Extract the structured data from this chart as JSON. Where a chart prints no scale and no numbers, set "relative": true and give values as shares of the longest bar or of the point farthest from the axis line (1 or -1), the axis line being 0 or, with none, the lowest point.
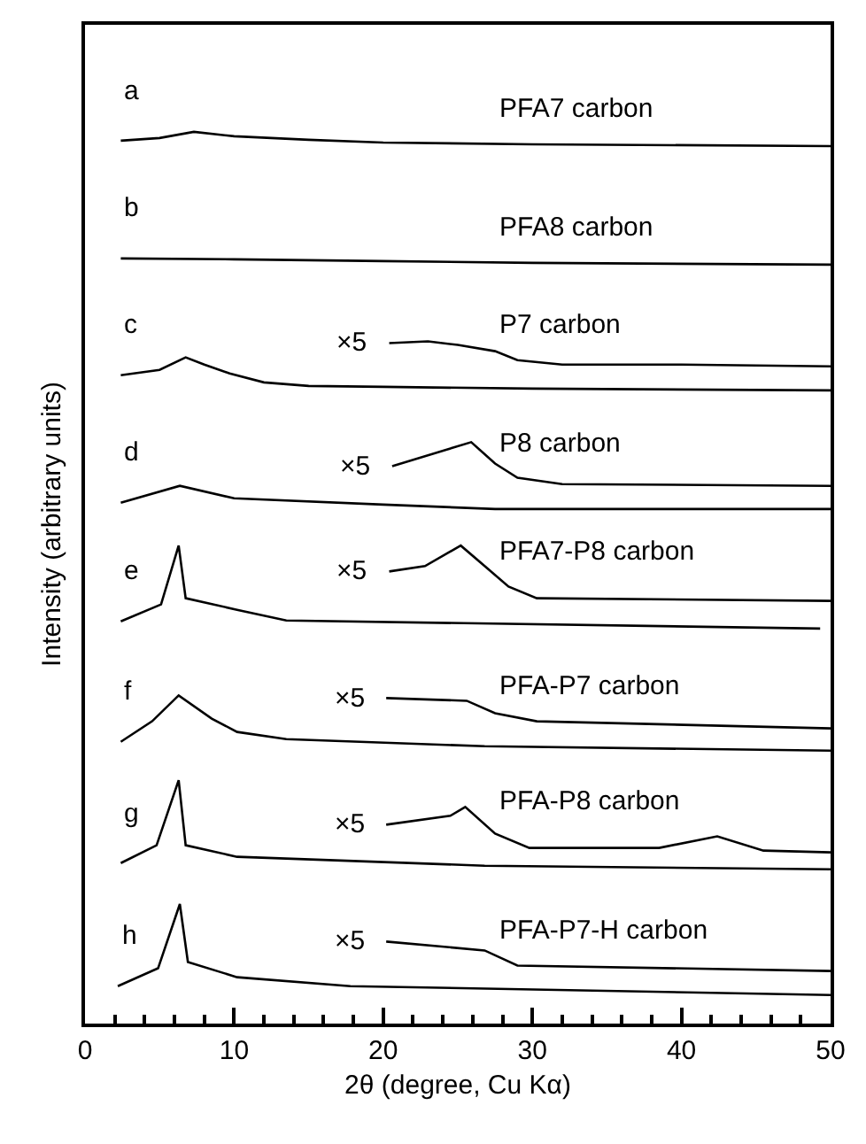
{
  "chart_data": {
    "type": "line",
    "relative": true,
    "xlabel": "2θ (degree, Cu Kα)",
    "ylabel": "Intensity (arbitrary units)",
    "xlim": [
      0,
      50
    ],
    "xticks": [
      0,
      {
        "value": 2,
        "label": null
      },
      {
        "value": 4,
        "label": null
      },
      {
        "value": 6,
        "label": null
      },
      {
        "value": 8,
        "label": null
      },
      10,
      {
        "value": 12,
        "label": null
      },
      {
        "value": 14,
        "label": null
      },
      {
        "value": 16,
        "label": null
      },
      {
        "value": 18,
        "label": null
      },
      20,
      {
        "value": 22,
        "label": null
      },
      {
        "value": 24,
        "label": null
      },
      {
        "value": 26,
        "label": null
      },
      {
        "value": 28,
        "label": null
      },
      30,
      {
        "value": 32,
        "label": null
      },
      {
        "value": 34,
        "label": null
      },
      {
        "value": 36,
        "label": null
      },
      {
        "value": 38,
        "label": null
      },
      40,
      {
        "value": 42,
        "label": null
      },
      {
        "value": 44,
        "label": null
      },
      {
        "value": 46,
        "label": null
      },
      {
        "value": 48,
        "label": null
      },
      50
    ],
    "legend": false,
    "marker": "none",
    "line_style": "solid",
    "series": [
      {
        "name": "PFA7 carbon",
        "color": "#000000",
        "x": [
          2.4,
          5,
          7.3,
          10,
          15,
          20,
          30,
          50
        ],
        "values": [
          0.99,
          0.993,
          1.0,
          0.995,
          0.991,
          0.988,
          0.986,
          0.984
        ]
      },
      {
        "name": "PFA8 carbon",
        "color": "#000000",
        "x": [
          2.4,
          10,
          20,
          30,
          50
        ],
        "values": [
          0.858,
          0.857,
          0.855,
          0.853,
          0.851
        ]
      },
      {
        "color": "#000000",
        "x": [
          2.4,
          5,
          6.75,
          8,
          9.7,
          12,
          15,
          20,
          30,
          50
        ],
        "values": [
          0.727,
          0.733,
          0.747,
          0.739,
          0.729,
          0.719,
          0.715,
          0.714,
          0.712,
          0.71
        ]
      },
      {
        "name": "P7 carbon",
        "color": "#000000",
        "x": [
          20.4,
          23,
          25,
          27.5,
          29,
          32,
          40,
          50
        ],
        "values": [
          0.763,
          0.765,
          0.761,
          0.754,
          0.744,
          0.739,
          0.739,
          0.737
        ]
      },
      {
        "color": "#000000",
        "x": [
          2.4,
          6.36,
          10,
          20,
          27.5,
          50
        ],
        "values": [
          0.584,
          0.603,
          0.589,
          0.582,
          0.577,
          0.577
        ]
      },
      {
        "name": "P8 carbon",
        "color": "#000000",
        "x": [
          20.6,
          25.9,
          27.5,
          29,
          32,
          50
        ],
        "values": [
          0.625,
          0.652,
          0.628,
          0.612,
          0.605,
          0.603
        ]
      },
      {
        "color": "#000000",
        "x": [
          2.4,
          5.1,
          6.28,
          6.75,
          10.2,
          13.5,
          25.4,
          49.3
        ],
        "values": [
          0.451,
          0.47,
          0.536,
          0.477,
          0.464,
          0.452,
          0.449,
          0.443
        ]
      },
      {
        "name": "PFA7-P8 carbon",
        "color": "#000000",
        "x": [
          20.4,
          22.8,
          25.2,
          26.8,
          28.4,
          30.3,
          50
        ],
        "values": [
          0.507,
          0.513,
          0.536,
          0.513,
          0.49,
          0.477,
          0.474
        ]
      },
      {
        "color": "#000000",
        "x": [
          2.4,
          4.5,
          6.28,
          8.5,
          10.2,
          13.5,
          26.8,
          50
        ],
        "values": [
          0.316,
          0.339,
          0.368,
          0.342,
          0.327,
          0.319,
          0.311,
          0.306
        ]
      },
      {
        "name": "PFA-P7 carbon",
        "color": "#000000",
        "x": [
          20.2,
          25.6,
          27.5,
          30.3,
          50
        ],
        "values": [
          0.365,
          0.362,
          0.348,
          0.339,
          0.331
        ]
      },
      {
        "color": "#000000",
        "x": [
          2.4,
          4.8,
          6.28,
          6.75,
          10.2,
          26.8,
          50
        ],
        "values": [
          0.18,
          0.2,
          0.273,
          0.2,
          0.187,
          0.177,
          0.173
        ]
      },
      {
        "name": "PFA-P8 carbon",
        "color": "#000000",
        "x": [
          20.2,
          24.5,
          25.5,
          27.5,
          29.8,
          38.5,
          42.4,
          45.5,
          50
        ],
        "values": [
          0.223,
          0.233,
          0.243,
          0.213,
          0.197,
          0.197,
          0.21,
          0.194,
          0.192
        ]
      },
      {
        "color": "#000000",
        "x": [
          2.2,
          4.9,
          6.36,
          6.9,
          10.2,
          17.8,
          50
        ],
        "values": [
          0.042,
          0.062,
          0.134,
          0.069,
          0.052,
          0.042,
          0.032
        ]
      },
      {
        "name": "PFA-P7-H carbon",
        "color": "#000000",
        "x": [
          20.2,
          26.8,
          29,
          50
        ],
        "values": [
          0.092,
          0.082,
          0.065,
          0.059
        ]
      }
    ],
    "annotations": [
      "a",
      "b",
      "c",
      "d",
      "e",
      "f",
      "g",
      "h",
      "×5",
      "×5",
      "×5",
      "×5",
      "×5",
      "×5"
    ]
  }
}
